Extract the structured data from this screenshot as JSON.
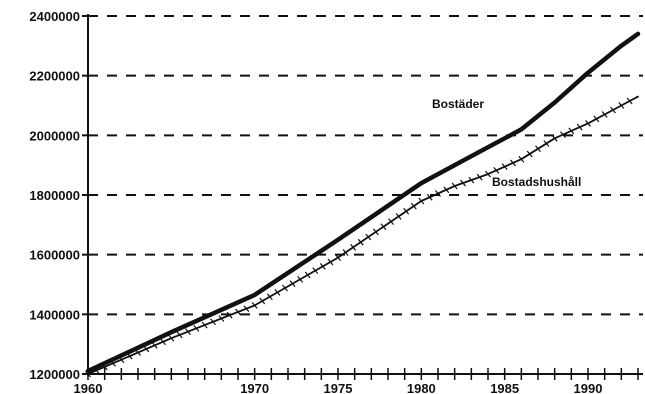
{
  "chart_data": {
    "type": "line",
    "title": "",
    "xlabel": "",
    "ylabel": "",
    "xlim": [
      1960,
      1993.3
    ],
    "ylim": [
      1200000,
      2400000
    ],
    "x_tick_labels": [
      {
        "x": 1960,
        "label": "1960"
      },
      {
        "x": 1970,
        "label": "1970"
      },
      {
        "x": 1975,
        "label": "1975"
      },
      {
        "x": 1980,
        "label": "1980"
      },
      {
        "x": 1985,
        "label": "1985"
      },
      {
        "x": 1990,
        "label": "1990"
      }
    ],
    "y_tick_labels": [
      {
        "y": 1200000,
        "label": "1200000"
      },
      {
        "y": 1400000,
        "label": "1400000"
      },
      {
        "y": 1600000,
        "label": "1600000"
      },
      {
        "y": 1800000,
        "label": "1800000"
      },
      {
        "y": 2000000,
        "label": "2000000"
      },
      {
        "y": 2200000,
        "label": "2200000"
      },
      {
        "y": 2400000,
        "label": "2400000"
      }
    ],
    "grid": "horizontal dashed",
    "series": [
      {
        "name": "Bostäder",
        "style": "thick line",
        "color": "#111111",
        "x": [
          1960,
          1965,
          1970,
          1975,
          1980,
          1983,
          1986,
          1988,
          1990,
          1992,
          1993
        ],
        "values": [
          1210000,
          1340000,
          1465000,
          1650000,
          1840000,
          1930000,
          2020000,
          2110000,
          2210000,
          2300000,
          2340000
        ]
      },
      {
        "name": "Bostadshushåll",
        "style": "thin line with tick markers",
        "color": "#111111",
        "x": [
          1960,
          1965,
          1970,
          1975,
          1980,
          1982,
          1984,
          1986,
          1988,
          1990,
          1992,
          1993
        ],
        "values": [
          1200000,
          1320000,
          1430000,
          1590000,
          1780000,
          1830000,
          1870000,
          1920000,
          1990000,
          2040000,
          2100000,
          2130000
        ]
      }
    ]
  }
}
